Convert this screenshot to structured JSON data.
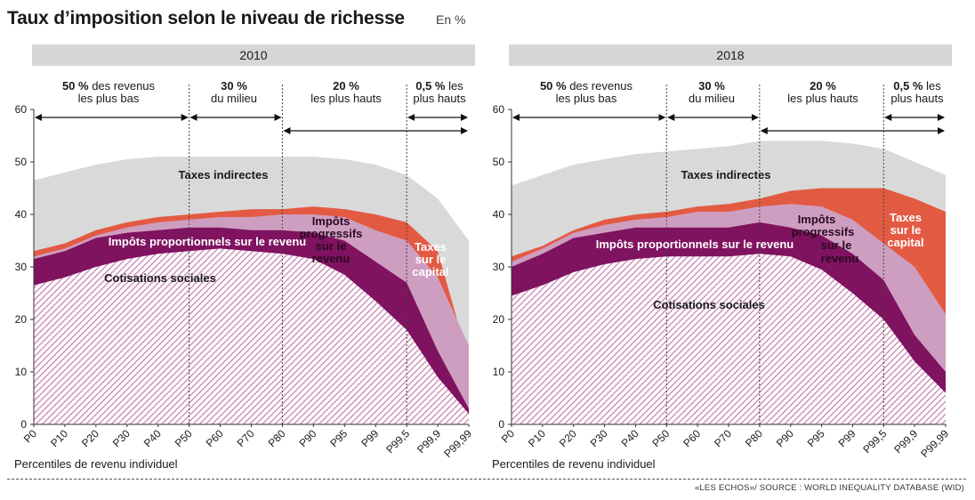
{
  "title": "Taux d’imposition selon le niveau de richesse",
  "unit": "En %",
  "footer": "«LES ECHOS»/ SOURCE : WORLD INEQUALITY DATABASE (WID)",
  "colors": {
    "cotisations": "#c987b4",
    "proportionnels": "#7f1360",
    "progressifs": "#ce9ec0",
    "capital": "#e35a43",
    "indirectes": "#d9d9d9",
    "panel_header": "#d6d6d6"
  },
  "chart_data": [
    {
      "type": "area",
      "panel_title": "2010",
      "xlabel": "Percentiles de revenu individuel",
      "ylabel": "",
      "ylim": [
        0,
        60
      ],
      "yticks": [
        0,
        10,
        20,
        30,
        40,
        50,
        60
      ],
      "categories": [
        "P0",
        "P10",
        "P20",
        "P30",
        "P40",
        "P50",
        "P60",
        "P70",
        "P80",
        "P90",
        "P95",
        "P99",
        "P99,5",
        "P99,9",
        "P99,99"
      ],
      "groups": [
        {
          "bold": "50 %",
          "text": " des revenus",
          "line2": "les plus bas"
        },
        {
          "bold": "30 %",
          "text": "",
          "line2": "du milieu"
        },
        {
          "bold": "20 %",
          "text": "",
          "line2": "les plus hauts"
        },
        {
          "bold": "0,5 %",
          "text": " les",
          "line2": "plus hauts"
        }
      ],
      "series": [
        {
          "name": "Cotisations sociales",
          "values": [
            26.5,
            28,
            30,
            31.5,
            32.5,
            33,
            33.5,
            33,
            32.5,
            31.5,
            28.5,
            23.5,
            18,
            9,
            2
          ]
        },
        {
          "name": "Impôts proportionnels sur le revenu",
          "values": [
            31.5,
            33,
            35.5,
            36.5,
            37,
            37.5,
            37.5,
            37,
            37,
            36.5,
            35,
            31,
            27,
            14,
            3
          ]
        },
        {
          "name": "Impôts progressifs sur le revenu",
          "values": [
            32,
            33.5,
            36,
            37.5,
            38.5,
            39,
            39.5,
            39.5,
            40,
            40,
            39.5,
            37,
            35,
            28,
            15
          ]
        },
        {
          "name": "Taxes sur le capital",
          "values": [
            33,
            34.5,
            37,
            38.5,
            39.5,
            40,
            40.5,
            41,
            41,
            41.5,
            41,
            40,
            38.5,
            33,
            12
          ]
        },
        {
          "name": "Taxes indirectes",
          "values": [
            46.5,
            48,
            49.5,
            50.5,
            51,
            51,
            51,
            51,
            51,
            51,
            50.5,
            49.5,
            47.5,
            43,
            35
          ]
        }
      ]
    },
    {
      "type": "area",
      "panel_title": "2018",
      "xlabel": "Percentiles de revenu individuel",
      "ylabel": "",
      "ylim": [
        0,
        60
      ],
      "yticks": [
        0,
        10,
        20,
        30,
        40,
        50,
        60
      ],
      "categories": [
        "P0",
        "P10",
        "P20",
        "P30",
        "P40",
        "P50",
        "P60",
        "P70",
        "P80",
        "P90",
        "P95",
        "P99",
        "P99,5",
        "P99,9",
        "P99,99"
      ],
      "groups": [
        {
          "bold": "50 %",
          "text": " des revenus",
          "line2": "les plus bas"
        },
        {
          "bold": "30 %",
          "text": "",
          "line2": "du milieu"
        },
        {
          "bold": "20 %",
          "text": "",
          "line2": "les plus hauts"
        },
        {
          "bold": "0,5 %",
          "text": " les",
          "line2": "plus hauts"
        }
      ],
      "series": [
        {
          "name": "Cotisations sociales",
          "values": [
            24.5,
            26.5,
            29,
            30.5,
            31.5,
            32,
            32,
            32,
            32.5,
            32,
            29.5,
            25,
            20,
            12,
            6
          ]
        },
        {
          "name": "Impôts proportionnels sur le revenu",
          "values": [
            30,
            32.5,
            35.5,
            36.5,
            37.5,
            37.5,
            37.5,
            37.5,
            38.5,
            37.5,
            36,
            32.5,
            27.5,
            17,
            10
          ]
        },
        {
          "name": "Impôts progressifs sur le revenu",
          "values": [
            31,
            33.5,
            36.5,
            38,
            39,
            39.5,
            40.5,
            40.5,
            41.5,
            42,
            41.5,
            39,
            34.5,
            30,
            21
          ]
        },
        {
          "name": "Taxes sur le capital",
          "values": [
            32,
            34,
            37,
            39,
            40,
            40.5,
            41.5,
            42,
            43,
            44.5,
            45,
            45,
            45,
            43,
            40.5
          ]
        },
        {
          "name": "Taxes indirectes",
          "values": [
            45.5,
            47.5,
            49.5,
            50.5,
            51.5,
            52,
            52.5,
            53,
            54,
            54,
            54,
            53.5,
            52.5,
            50,
            47.5
          ]
        }
      ],
      "labels": {
        "cotisations": "Cotisations sociales",
        "proportionnels": "Impôts proportionnels sur le revenu",
        "progressifs": [
          "Impôts",
          "progressifs",
          "sur le",
          "revenu"
        ],
        "capital": [
          "Taxes",
          "sur le",
          "capital"
        ],
        "indirectes": "Taxes indirectes"
      }
    }
  ],
  "labels_2010": {
    "cotisations": "Cotisations sociales",
    "proportionnels": "Impôts proportionnels sur le revenu",
    "progressifs": [
      "Impôts",
      "progressifs",
      "sur le",
      "revenu"
    ],
    "capital": [
      "Taxes",
      "sur le",
      "capital"
    ],
    "indirectes": "Taxes indirectes"
  }
}
